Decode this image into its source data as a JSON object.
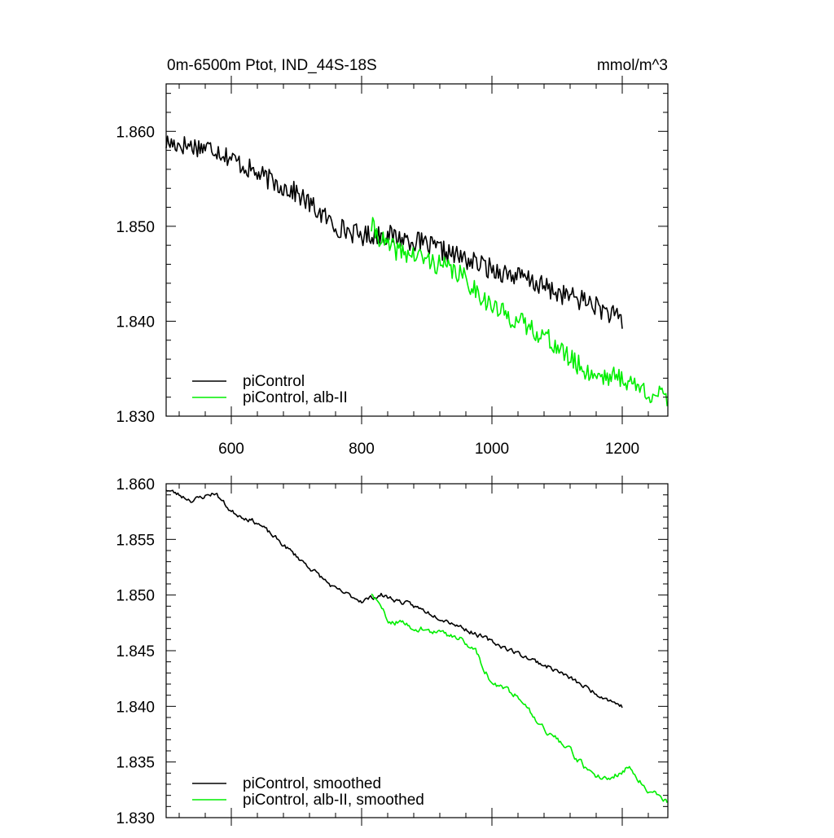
{
  "figure": {
    "title_left": "0m-6500m Ptot, IND_44S-18S",
    "title_right": "mmol/m^3",
    "colors": {
      "control": "#000000",
      "experiment": "#00ee00",
      "frame": "#000000"
    }
  },
  "chart_data": [
    {
      "type": "line",
      "xlim": [
        500,
        1270
      ],
      "ylim": [
        1.83,
        1.865
      ],
      "x_ticks": [
        600,
        800,
        1000,
        1200
      ],
      "x_tick_labels": [
        "600",
        "800",
        "1000",
        "1200"
      ],
      "y_ticks": [
        1.83,
        1.84,
        1.85,
        1.86
      ],
      "y_tick_labels": [
        "1.830",
        "1.840",
        "1.850",
        "1.860"
      ],
      "show_x_tick_labels": true,
      "grid": false,
      "legend_position": "bottom-left",
      "series": [
        {
          "name": "piControl",
          "color": "#000000",
          "x_start": 500,
          "x_end": 1200,
          "step": 2,
          "trend": [
            [
              500,
              1.8588
            ],
            [
              575,
              1.8582
            ],
            [
              640,
              1.8555
            ],
            [
              700,
              1.8535
            ],
            [
              760,
              1.85
            ],
            [
              800,
              1.849
            ],
            [
              830,
              1.8492
            ],
            [
              880,
              1.8485
            ],
            [
              940,
              1.847
            ],
            [
              1000,
              1.8455
            ],
            [
              1050,
              1.8445
            ],
            [
              1100,
              1.843
            ],
            [
              1150,
              1.842
            ],
            [
              1200,
              1.84
            ]
          ],
          "noise": 0.0011,
          "seed": 17
        },
        {
          "name": "piControl, alb-II",
          "color": "#00ee00",
          "x_start": 815,
          "x_end": 1270,
          "step": 2,
          "trend": [
            [
              815,
              1.85
            ],
            [
              840,
              1.8478
            ],
            [
              900,
              1.8465
            ],
            [
              950,
              1.845
            ],
            [
              980,
              1.843
            ],
            [
              1000,
              1.8415
            ],
            [
              1040,
              1.84
            ],
            [
              1080,
              1.8385
            ],
            [
              1120,
              1.836
            ],
            [
              1150,
              1.8345
            ],
            [
              1200,
              1.834
            ],
            [
              1240,
              1.8325
            ],
            [
              1270,
              1.8318
            ]
          ],
          "noise": 0.0011,
          "seed": 41
        }
      ]
    },
    {
      "type": "line",
      "xlim": [
        500,
        1270
      ],
      "ylim": [
        1.83,
        1.86
      ],
      "x_ticks": [
        600,
        800,
        1000,
        1200
      ],
      "x_tick_labels": [
        "600",
        "800",
        "1000",
        "1200"
      ],
      "y_ticks": [
        1.83,
        1.835,
        1.84,
        1.845,
        1.85,
        1.855,
        1.86
      ],
      "y_tick_labels": [
        "1.830",
        "1.835",
        "1.840",
        "1.845",
        "1.850",
        "1.855",
        "1.860"
      ],
      "show_x_tick_labels": false,
      "grid": false,
      "legend_position": "bottom-left",
      "series": [
        {
          "name": "piControl, smoothed",
          "color": "#000000",
          "x_start": 500,
          "x_end": 1200,
          "step": 2,
          "trend": [
            [
              500,
              1.8595
            ],
            [
              540,
              1.8585
            ],
            [
              575,
              1.8592
            ],
            [
              600,
              1.8575
            ],
            [
              640,
              1.8565
            ],
            [
              680,
              1.8545
            ],
            [
              720,
              1.8525
            ],
            [
              760,
              1.8505
            ],
            [
              800,
              1.8495
            ],
            [
              830,
              1.85
            ],
            [
              880,
              1.849
            ],
            [
              940,
              1.8475
            ],
            [
              1000,
              1.8458
            ],
            [
              1050,
              1.8445
            ],
            [
              1100,
              1.8432
            ],
            [
              1150,
              1.8415
            ],
            [
              1200,
              1.84
            ]
          ],
          "noise": 0.0004,
          "seed": 23
        },
        {
          "name": "piControl, alb-II, smoothed",
          "color": "#00ee00",
          "x_start": 815,
          "x_end": 1270,
          "step": 2,
          "trend": [
            [
              815,
              1.8502
            ],
            [
              840,
              1.8478
            ],
            [
              900,
              1.8468
            ],
            [
              950,
              1.8462
            ],
            [
              975,
              1.845
            ],
            [
              1000,
              1.842
            ],
            [
              1040,
              1.841
            ],
            [
              1080,
              1.838
            ],
            [
              1120,
              1.836
            ],
            [
              1150,
              1.834
            ],
            [
              1180,
              1.8335
            ],
            [
              1210,
              1.8345
            ],
            [
              1240,
              1.8325
            ],
            [
              1270,
              1.8315
            ]
          ],
          "noise": 0.0005,
          "seed": 59
        }
      ]
    }
  ]
}
